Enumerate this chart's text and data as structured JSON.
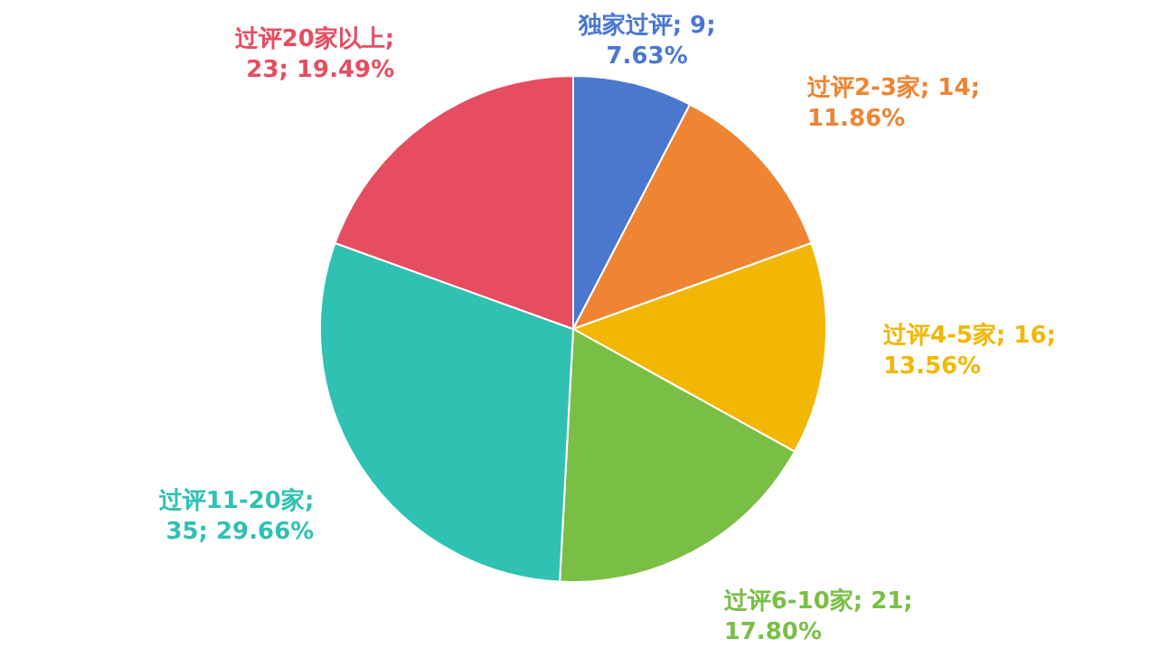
{
  "chart_data": {
    "type": "pie",
    "categories": [
      "独家过评",
      "过评2-3家",
      "过评4-5家",
      "过评6-10家",
      "过评11-20家",
      "过评20家以上"
    ],
    "values": [
      9,
      14,
      16,
      21,
      35,
      23
    ],
    "colors": [
      "#4a78cf",
      "#ef8432",
      "#f2b705",
      "#7abf45",
      "#2fc1b2",
      "#e64d60"
    ],
    "value_labels": [
      "; 9;\n7.63%",
      "; 14;\n11.86%",
      "; 16;\n13.56%",
      "; 21;\n17.80%",
      ";\n35; 29.66%",
      ";\n23; 19.49%"
    ]
  }
}
